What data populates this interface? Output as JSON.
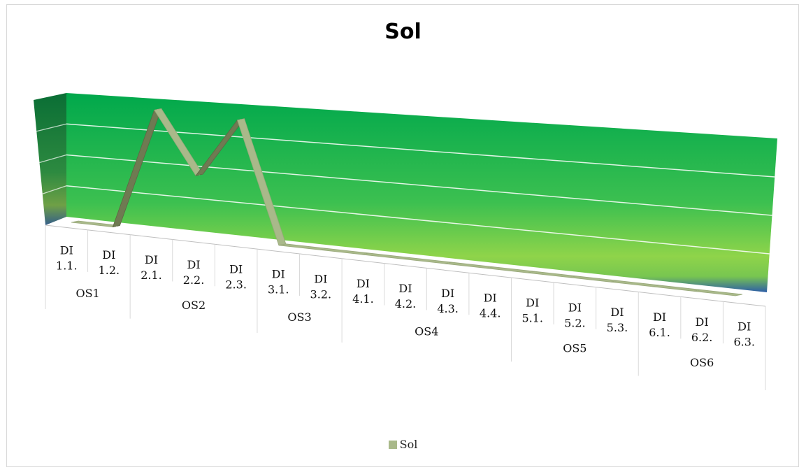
{
  "chart_data": {
    "type": "line",
    "title": "Sol",
    "legend": {
      "position": "bottom",
      "entries": [
        "Sol"
      ]
    },
    "grid": true,
    "ylim": [
      0,
      4
    ],
    "series": [
      {
        "name": "Sol",
        "color": "#a9b98a",
        "values": [
          0,
          0,
          4,
          2,
          4,
          0,
          0,
          0,
          0,
          0,
          0,
          0,
          0,
          0,
          0,
          0,
          0
        ]
      }
    ],
    "categories": [
      [
        "DI",
        "1.1."
      ],
      [
        "DI",
        "1.2."
      ],
      [
        "DI",
        "2.1."
      ],
      [
        "DI",
        "2.2."
      ],
      [
        "DI",
        "2.3."
      ],
      [
        "DI",
        "3.1."
      ],
      [
        "DI",
        "3.2."
      ],
      [
        "DI",
        "4.1."
      ],
      [
        "DI",
        "4.2."
      ],
      [
        "DI",
        "4.3."
      ],
      [
        "DI",
        "4.4."
      ],
      [
        "DI",
        "5.1."
      ],
      [
        "DI",
        "5.2."
      ],
      [
        "DI",
        "5.3."
      ],
      [
        "DI",
        "6.1."
      ],
      [
        "DI",
        "6.2."
      ],
      [
        "DI",
        "6.3."
      ]
    ],
    "groups": [
      {
        "label": "OS1",
        "count": 2
      },
      {
        "label": "OS2",
        "count": 3
      },
      {
        "label": "OS3",
        "count": 2
      },
      {
        "label": "OS4",
        "count": 4
      },
      {
        "label": "OS5",
        "count": 3
      },
      {
        "label": "OS6",
        "count": 3
      }
    ]
  }
}
